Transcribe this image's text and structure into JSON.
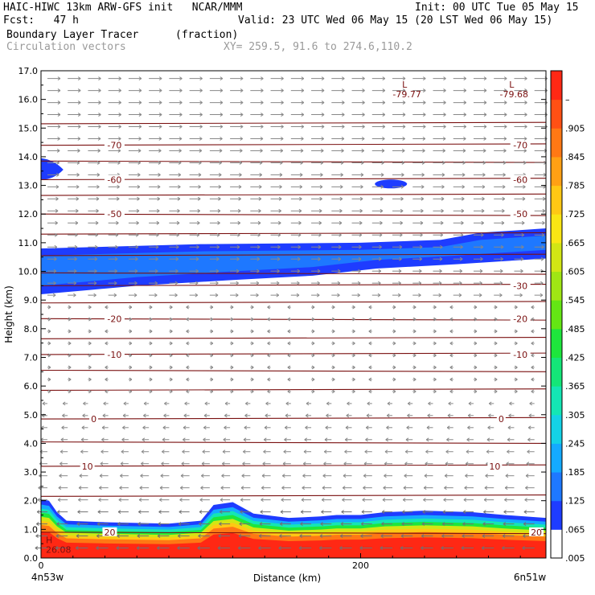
{
  "header": {
    "line1_left": "HAIC-HIWC 13km ARW-GFS init   NCAR/MMM",
    "line1_right": "Init: 00 UTC Tue 05 May 15",
    "line2_left": "Fcst:   47 h",
    "line2_right": "Valid: 23 UTC Wed 06 May 15 (20 LST Wed 06 May 15)",
    "line3_left": "Boundary Layer Tracer",
    "line3_units": "(fraction)",
    "line4_left": "Circulation vectors",
    "line4_right": "XY= 259.5, 91.6 to 274.6,110.2"
  },
  "chart_data": {
    "type": "heatmap",
    "xlabel": "Distance (km)",
    "ylabel": "Height (km)",
    "xlim": [
      0,
      316
    ],
    "ylim": [
      0,
      17
    ],
    "x_ticks": [
      {
        "value": 0,
        "label": "0"
      },
      {
        "value": 200,
        "label": "200"
      }
    ],
    "x_end_labels": {
      "left": "4n53w",
      "right": "6n51w"
    },
    "y_ticks": [
      "0.0",
      "1.0",
      "2.0",
      "3.0",
      "4.0",
      "5.0",
      "6.0",
      "7.0",
      "8.0",
      "9.0",
      "10.0",
      "11.0",
      "12.0",
      "13.0",
      "14.0",
      "15.0",
      "16.0",
      "17.0"
    ],
    "colorbar_labels": [
      ".005",
      ".065",
      ".125",
      ".185",
      ".245",
      ".305",
      ".365",
      ".425",
      ".485",
      ".545",
      ".605",
      ".665",
      ".725",
      ".785",
      ".845",
      ".905",
      "–"
    ],
    "colorbar_colors": [
      "#ffffff",
      "#1e3cff",
      "#1e78ff",
      "#14aaff",
      "#14d2e6",
      "#14e6b4",
      "#14e678",
      "#1ee63c",
      "#64e614",
      "#a0e614",
      "#d2e614",
      "#fae614",
      "#ffc814",
      "#ffa014",
      "#ff7814",
      "#ff5014",
      "#ff2814"
    ],
    "isotherm_labels": [
      {
        "value": "-70",
        "x": 46,
        "y": 14.4
      },
      {
        "value": "-70",
        "x": 300,
        "y": 14.4
      },
      {
        "value": "-60",
        "x": 46,
        "y": 13.2
      },
      {
        "value": "-60",
        "x": 300,
        "y": 13.2
      },
      {
        "value": "-50",
        "x": 46,
        "y": 12.0
      },
      {
        "value": "-50",
        "x": 300,
        "y": 12.0
      },
      {
        "value": "-30",
        "x": 300,
        "y": 9.5
      },
      {
        "value": "-20",
        "x": 46,
        "y": 8.35
      },
      {
        "value": "-20",
        "x": 300,
        "y": 8.35
      },
      {
        "value": "-10",
        "x": 46,
        "y": 7.1
      },
      {
        "value": "-10",
        "x": 300,
        "y": 7.1
      },
      {
        "value": "0",
        "x": 33,
        "y": 4.85
      },
      {
        "value": "0",
        "x": 288,
        "y": 4.85
      },
      {
        "value": "10",
        "x": 29,
        "y": 3.2
      },
      {
        "value": "10",
        "x": 284,
        "y": 3.2
      },
      {
        "value": "20",
        "x": 43,
        "y": 0.9
      },
      {
        "value": "20",
        "x": 310,
        "y": 0.9
      }
    ],
    "lows": [
      {
        "symbol": "L",
        "value": "-79.77",
        "x": 229,
        "y": 16.3
      },
      {
        "symbol": "L",
        "value": "-79.68",
        "x": 296,
        "y": 16.3
      }
    ],
    "highs": [
      {
        "symbol": "H",
        "value": "26.08",
        "x": 3,
        "y": 0.4
      }
    ],
    "cirrus_layer": {
      "top": [
        [
          0,
          10.8
        ],
        [
          100,
          10.95
        ],
        [
          200,
          11.0
        ],
        [
          250,
          11.1
        ],
        [
          275,
          11.35
        ],
        [
          316,
          11.5
        ]
      ],
      "bottom": [
        [
          0,
          9.2
        ],
        [
          30,
          9.35
        ],
        [
          60,
          9.5
        ],
        [
          120,
          9.7
        ],
        [
          170,
          9.85
        ],
        [
          210,
          10.1
        ],
        [
          260,
          10.25
        ],
        [
          316,
          10.45
        ]
      ]
    },
    "boundary_layer_top": [
      [
        0,
        2.05
      ],
      [
        5,
        2.0
      ],
      [
        10,
        1.6
      ],
      [
        16,
        1.3
      ],
      [
        40,
        1.25
      ],
      [
        80,
        1.2
      ],
      [
        100,
        1.3
      ],
      [
        108,
        1.85
      ],
      [
        120,
        1.95
      ],
      [
        133,
        1.55
      ],
      [
        155,
        1.4
      ],
      [
        175,
        1.45
      ],
      [
        185,
        1.5
      ],
      [
        200,
        1.5
      ],
      [
        215,
        1.6
      ],
      [
        240,
        1.65
      ],
      [
        270,
        1.6
      ],
      [
        290,
        1.5
      ],
      [
        316,
        1.4
      ]
    ]
  }
}
